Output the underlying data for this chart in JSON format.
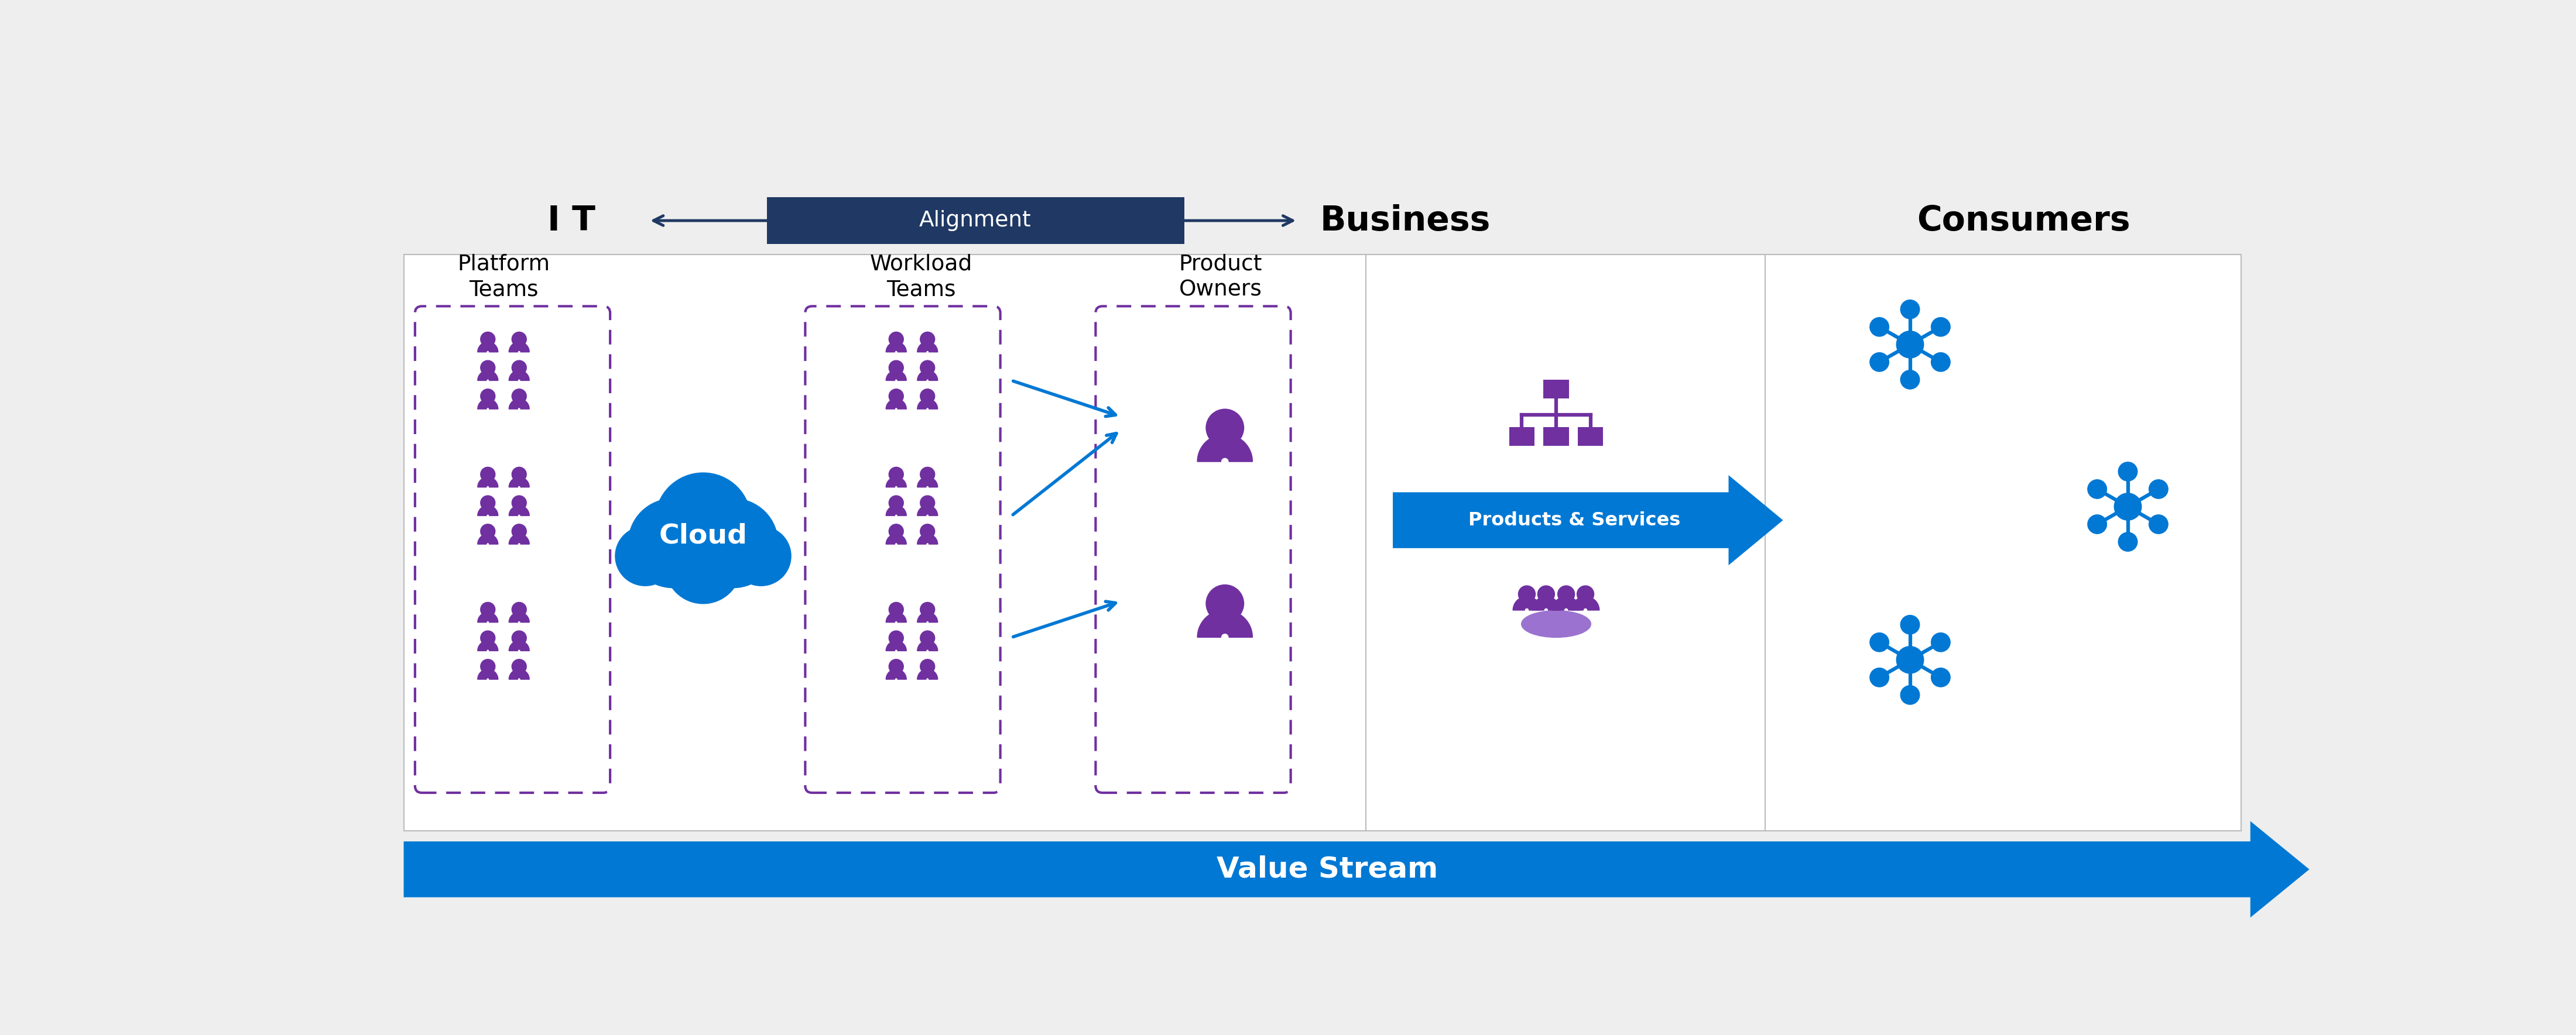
{
  "bg_color": "#eeeeee",
  "white": "#ffffff",
  "dark_blue": "#1f3864",
  "blue": "#0078d4",
  "purple": "#7030a0",
  "gray_border": "#bbbbbb",
  "alignment_arrow_color": "#1f3864",
  "value_stream_color": "#0078d4",
  "title_IT": "I T",
  "title_Business": "Business",
  "title_Consumers": "Consumers",
  "alignment_label": "Alignment",
  "platform_teams_label": "Platform\nTeams",
  "workload_teams_label": "Workload\nTeams",
  "product_owners_label": "Product\nOwners",
  "products_services_label": "Products & Services",
  "value_stream_label": "Value Stream",
  "cloud_label": "Cloud"
}
